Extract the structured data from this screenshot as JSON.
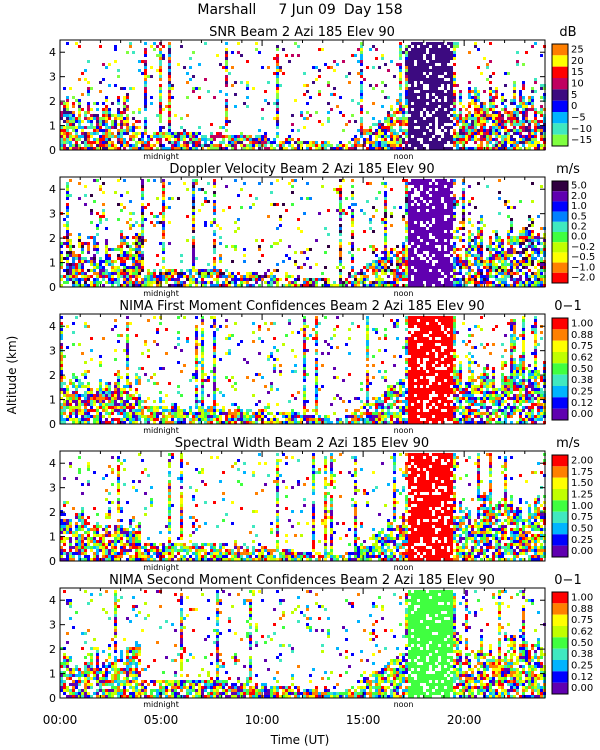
{
  "header": {
    "site": "Marshall",
    "date": "7 Jun 09",
    "day": "Day 158"
  },
  "chart_data": {
    "type": "heatmap",
    "ylabel": "Altitude (km)",
    "xlabel": "Time (UT)",
    "x_range_hours": [
      0,
      24
    ],
    "x_ticks": [
      {
        "t": 0,
        "label": "00:00"
      },
      {
        "t": 5,
        "label": "05:00"
      },
      {
        "t": 10,
        "label": "10:00"
      },
      {
        "t": 15,
        "label": "15:00"
      },
      {
        "t": 20,
        "label": "20:00"
      }
    ],
    "markers": [
      {
        "t": 5.0,
        "label": "midnight"
      },
      {
        "t": 17.0,
        "label": "noon"
      }
    ],
    "y_ticks": [
      "0",
      "1",
      "2",
      "3",
      "4"
    ],
    "y_range_km": [
      0,
      4.5
    ],
    "panels": [
      {
        "id": "snr",
        "title": "SNR Beam 2 Azi 185 Elev 90",
        "unit": "dB",
        "scale": [
          "25",
          "20",
          "15",
          "10",
          "5",
          "0",
          "−5",
          "−10",
          "−15"
        ],
        "palette": [
          "#ff7f00",
          "#ffff00",
          "#ff0000",
          "#c00060",
          "#3c0a80",
          "#0000ff",
          "#00b4ff",
          "#40e8c0",
          "#80ff40"
        ]
      },
      {
        "id": "velocity",
        "title": "Doppler Velocity Beam 2 Azi 185 Elev 90",
        "unit": "m/s",
        "scale": [
          "5.0",
          "2.0",
          "1.0",
          "0.5",
          "0.2",
          "0.0",
          "−0.2",
          "−0.5",
          "−1.0",
          "−2.0"
        ],
        "palette": [
          "#300040",
          "#6000b0",
          "#0000ff",
          "#0080ff",
          "#40e8c0",
          "#40ff40",
          "#c0ff00",
          "#ffff00",
          "#ff8000",
          "#ff0000"
        ]
      },
      {
        "id": "nima1",
        "title": "NIMA First Moment Confidences Beam 2 Azi 185 Elev 90",
        "unit": "0−1",
        "scale": [
          "1.00",
          "0.88",
          "0.75",
          "0.62",
          "0.50",
          "0.38",
          "0.25",
          "0.12",
          "0.00"
        ],
        "palette": [
          "#ff0000",
          "#ff8000",
          "#ffff00",
          "#c0ff00",
          "#40ff40",
          "#40e8c0",
          "#00b4ff",
          "#0000ff",
          "#6000b0"
        ]
      },
      {
        "id": "width",
        "title": "Spectral Width Beam 2 Azi 185 Elev 90",
        "unit": "m/s",
        "scale": [
          "2.00",
          "1.75",
          "1.50",
          "1.25",
          "1.00",
          "0.75",
          "0.50",
          "0.25",
          "0.00"
        ],
        "palette": [
          "#ff0000",
          "#ff8000",
          "#ffff00",
          "#c0ff00",
          "#40ff40",
          "#40e8c0",
          "#00b4ff",
          "#0000ff",
          "#6000b0"
        ]
      },
      {
        "id": "nima2",
        "title": "NIMA Second Moment Confidences Beam 2 Azi 185 Elev 90",
        "unit": "0−1",
        "scale": [
          "1.00",
          "0.88",
          "0.75",
          "0.62",
          "0.50",
          "0.38",
          "0.25",
          "0.12",
          "0.00"
        ],
        "palette": [
          "#ff0000",
          "#ff8000",
          "#ffff00",
          "#c0ff00",
          "#40ff40",
          "#40e8c0",
          "#00b4ff",
          "#0000ff",
          "#6000b0"
        ]
      }
    ]
  }
}
